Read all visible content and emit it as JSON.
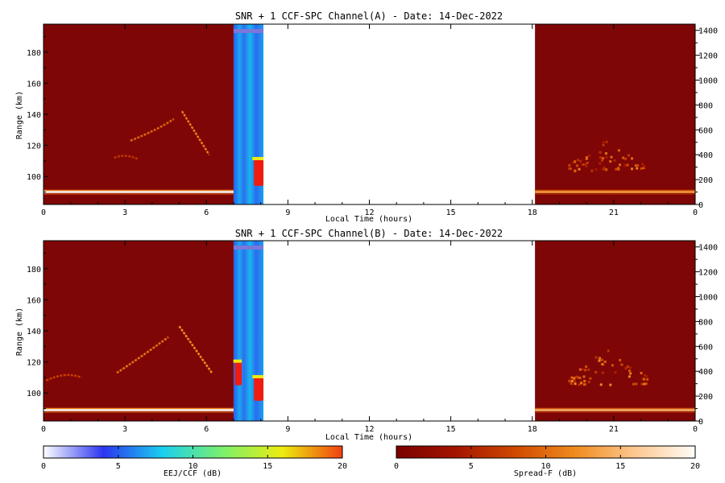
{
  "chart_data": {
    "type": "heatmap",
    "x_ticks": [
      "0",
      "3",
      "6",
      "9",
      "12",
      "15",
      "18",
      "21",
      "0"
    ],
    "x_tick_hours": [
      0,
      3,
      6,
      9,
      12,
      15,
      18,
      21,
      24
    ],
    "xlim": [
      0,
      24
    ],
    "ylim": [
      82,
      198
    ],
    "y_ticks": [
      100,
      120,
      140,
      160,
      180
    ],
    "y2lim": [
      0,
      1450
    ],
    "y2_ticks": [
      0,
      200,
      400,
      600,
      800,
      1000,
      1200,
      1400
    ],
    "panels": [
      {
        "title": "SNR + 1 CCF-SPC Channel(A) - Date: 14-Dec-2022",
        "xlabel": "Local Time (hours)",
        "ylabel": "Range (km)",
        "data_blocks": [
          {
            "kind": "spread-f",
            "start_h": 0,
            "end_h": 7.0
          },
          {
            "kind": "eej",
            "start_h": 7.0,
            "end_h": 8.1
          },
          {
            "kind": "spread-f",
            "start_h": 18.1,
            "end_h": 24
          }
        ],
        "features": [
          {
            "kind": "layer",
            "start_h": 0,
            "end_h": 7.0,
            "range_km": 90,
            "strength_db": 20
          },
          {
            "kind": "layer",
            "start_h": 18.1,
            "end_h": 24,
            "range_km": 90,
            "strength_db": 16
          },
          {
            "kind": "arc",
            "points": [
              [
                3.2,
                123
              ],
              [
                4.2,
                130
              ],
              [
                4.8,
                137
              ]
            ],
            "strength_db": 12
          },
          {
            "kind": "arc",
            "points": [
              [
                5.1,
                142
              ],
              [
                5.6,
                128
              ],
              [
                6.1,
                114
              ]
            ],
            "strength_db": 14
          },
          {
            "kind": "arc",
            "points": [
              [
                2.6,
                112
              ],
              [
                3.0,
                115
              ],
              [
                3.5,
                111
              ]
            ],
            "strength_db": 8
          },
          {
            "kind": "cluster",
            "start_h": 19.3,
            "end_h": 22.1,
            "range_low": 104,
            "range_high": 125,
            "strength_db": 14
          },
          {
            "kind": "eej_blob",
            "start_h": 7.75,
            "end_h": 8.1,
            "range_low": 94,
            "range_high": 111,
            "strength_db": 20
          }
        ]
      },
      {
        "title": "SNR + 1 CCF-SPC Channel(B) - Date: 14-Dec-2022",
        "xlabel": "Local Time (hours)",
        "ylabel": "Range (km)",
        "data_blocks": [
          {
            "kind": "spread-f",
            "start_h": 0,
            "end_h": 7.0
          },
          {
            "kind": "eej",
            "start_h": 7.0,
            "end_h": 8.1
          },
          {
            "kind": "spread-f",
            "start_h": 18.1,
            "end_h": 24
          }
        ],
        "features": [
          {
            "kind": "layer",
            "start_h": 0,
            "end_h": 7.0,
            "range_km": 89,
            "strength_db": 21
          },
          {
            "kind": "layer",
            "start_h": 18.1,
            "end_h": 24,
            "range_km": 89,
            "strength_db": 17
          },
          {
            "kind": "arc",
            "points": [
              [
                2.7,
                113
              ],
              [
                3.5,
                122
              ],
              [
                4.6,
                136
              ]
            ],
            "strength_db": 13
          },
          {
            "kind": "arc",
            "points": [
              [
                5.0,
                143
              ],
              [
                5.6,
                128
              ],
              [
                6.2,
                113
              ]
            ],
            "strength_db": 15
          },
          {
            "kind": "arc",
            "points": [
              [
                0.1,
                108
              ],
              [
                0.8,
                114
              ],
              [
                1.4,
                110
              ]
            ],
            "strength_db": 9
          },
          {
            "kind": "cluster",
            "start_h": 19.3,
            "end_h": 22.2,
            "range_low": 106,
            "range_high": 130,
            "strength_db": 15
          },
          {
            "kind": "eej_blob",
            "start_h": 7.75,
            "end_h": 8.1,
            "range_low": 95,
            "range_high": 110,
            "strength_db": 20
          },
          {
            "kind": "eej_blob",
            "start_h": 7.05,
            "end_h": 7.3,
            "range_low": 105,
            "range_high": 120,
            "strength_db": 18
          }
        ]
      }
    ],
    "colorbars": [
      {
        "label": "EEJ/CCF (dB)",
        "range": [
          0,
          20
        ],
        "ticks": [
          0,
          5,
          10,
          15,
          20
        ],
        "colors": [
          "#ffffff",
          "#2b35f0",
          "#1ad0f0",
          "#7cf06a",
          "#ecec10",
          "#f04010"
        ]
      },
      {
        "label": "Spread-F (dB)",
        "range": [
          0,
          20
        ],
        "ticks": [
          0,
          5,
          10,
          15,
          20
        ],
        "colors": [
          "#7a0000",
          "#a41400",
          "#d04a00",
          "#f08c20",
          "#fcc890",
          "#fffcf8"
        ]
      }
    ]
  }
}
